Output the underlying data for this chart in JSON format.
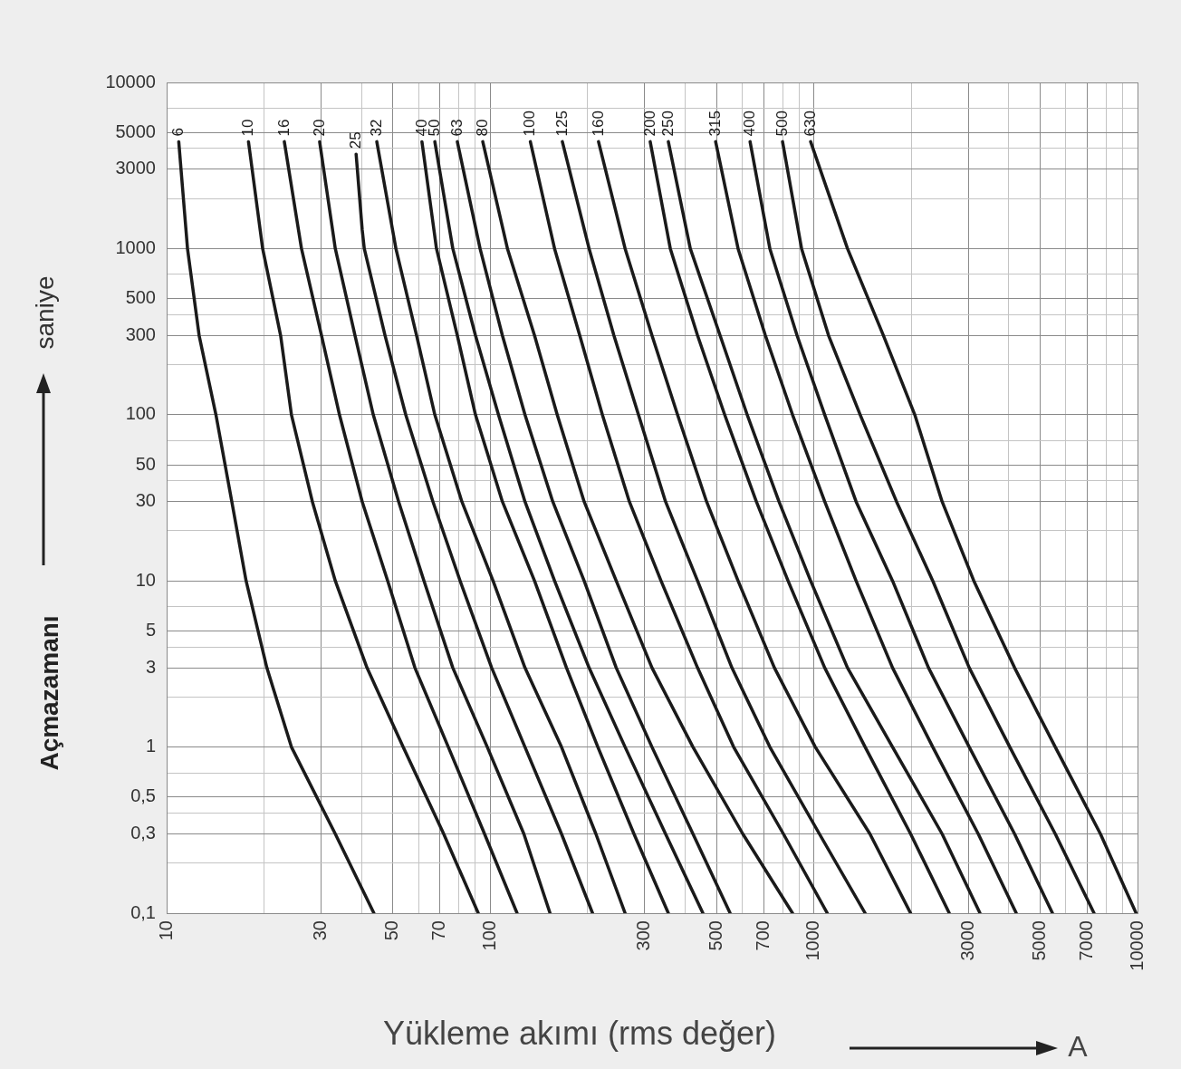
{
  "chart_data": {
    "type": "line",
    "xlabel": "Yükleme akımı (rms değer)",
    "ylabel": "Açmazamanı",
    "annotations": [
      "saniye",
      "A"
    ],
    "xlim": [
      10,
      10000
    ],
    "ylim": [
      0.1,
      10000
    ],
    "log": "xy",
    "grid": true,
    "line_style": "solid",
    "xticks": [
      10,
      {
        "value": 20,
        "label": null
      },
      30,
      {
        "value": 40,
        "label": null
      },
      50,
      {
        "value": 60,
        "label": null
      },
      70,
      {
        "value": 80,
        "label": null
      },
      {
        "value": 90,
        "label": null
      },
      100,
      {
        "value": 200,
        "label": null
      },
      300,
      {
        "value": 400,
        "label": null
      },
      500,
      {
        "value": 600,
        "label": null
      },
      700,
      {
        "value": 800,
        "label": null
      },
      {
        "value": 900,
        "label": null
      },
      1000,
      {
        "value": 2000,
        "label": null
      },
      3000,
      {
        "value": 4000,
        "label": null
      },
      5000,
      {
        "value": 6000,
        "label": null
      },
      7000,
      {
        "value": 8000,
        "label": null
      },
      {
        "value": 9000,
        "label": null
      },
      10000
    ],
    "yticks": [
      {
        "value": 0.1,
        "label": "0,1"
      },
      {
        "value": 0.2,
        "label": null
      },
      {
        "value": 0.3,
        "label": "0,3"
      },
      {
        "value": 0.4,
        "label": null
      },
      {
        "value": 0.5,
        "label": "0,5"
      },
      {
        "value": 0.7,
        "label": null
      },
      1,
      {
        "value": 2,
        "label": null
      },
      3,
      {
        "value": 4,
        "label": null
      },
      5,
      {
        "value": 7,
        "label": null
      },
      10,
      {
        "value": 20,
        "label": null
      },
      30,
      {
        "value": 40,
        "label": null
      },
      50,
      {
        "value": 70,
        "label": null
      },
      100,
      {
        "value": 200,
        "label": null
      },
      300,
      {
        "value": 400,
        "label": null
      },
      500,
      {
        "value": 700,
        "label": null
      },
      1000,
      {
        "value": 2000,
        "label": null
      },
      3000,
      {
        "value": 4000,
        "label": null
      },
      5000,
      {
        "value": 7000,
        "label": null
      },
      10000
    ],
    "series": [
      {
        "name": "6",
        "color": "#1a1a1a",
        "x": [
          10.9,
          11.6,
          12.6,
          14.2,
          15.9,
          17.6,
          20.4,
          24.3,
          33.2,
          43.7
        ],
        "values": [
          4400,
          1000,
          300,
          100,
          30,
          10,
          3,
          1,
          0.3,
          0.1
        ]
      },
      {
        "name": "10",
        "color": "#1a1a1a",
        "x": [
          17.9,
          19.8,
          22.5,
          24.3,
          28.2,
          33.2,
          41.6,
          53.8,
          71.8,
          91.8
        ],
        "values": [
          4400,
          1000,
          300,
          100,
          30,
          10,
          3,
          1,
          0.3,
          0.1
        ]
      },
      {
        "name": "16",
        "color": "#1a1a1a",
        "x": [
          23.1,
          26.1,
          30.1,
          34.2,
          40.2,
          48.2,
          58.5,
          74.2,
          96,
          121
        ],
        "values": [
          4400,
          1000,
          300,
          100,
          30,
          10,
          3,
          1,
          0.3,
          0.1
        ]
      },
      {
        "name": "20",
        "color": "#1a1a1a",
        "x": [
          29.7,
          33.2,
          38.2,
          43.5,
          52.1,
          62.4,
          76.6,
          97.9,
          127,
          153
        ],
        "values": [
          4400,
          1000,
          300,
          100,
          30,
          10,
          3,
          1,
          0.3,
          0.1
        ]
      },
      {
        "name": "25",
        "color": "#1a1a1a",
        "x": [
          38.5,
          40.2,
          40.8,
          47.3,
          54.8,
          66.5,
          80.7,
          101,
          128,
          166,
          207
        ],
        "values": [
          3700,
          1300,
          1000,
          300,
          100,
          30,
          10,
          3,
          1,
          0.3,
          0.1
        ]
      },
      {
        "name": "32",
        "color": "#1a1a1a",
        "x": [
          44.6,
          51.1,
          59.2,
          67.4,
          81.7,
          102,
          128,
          166,
          212,
          261
        ],
        "values": [
          4400,
          1000,
          300,
          100,
          30,
          10,
          3,
          1,
          0.3,
          0.1
        ]
      },
      {
        "name": "40",
        "color": "#1a1a1a",
        "x": [
          61.5,
          68.2,
          79.1,
          90,
          109,
          137,
          172,
          215,
          278,
          355
        ],
        "values": [
          4400,
          1000,
          300,
          100,
          30,
          10,
          3,
          1,
          0.3,
          0.1
        ]
      },
      {
        "name": "50",
        "color": "#1a1a1a",
        "x": [
          67.4,
          76.6,
          90,
          106,
          128,
          158,
          202,
          261,
          348,
          454
        ],
        "values": [
          4400,
          1000,
          300,
          100,
          30,
          10,
          3,
          1,
          0.3,
          0.1
        ]
      },
      {
        "name": "63",
        "color": "#1a1a1a",
        "x": [
          79.1,
          93,
          109,
          128,
          156,
          195,
          245,
          316,
          423,
          551
        ],
        "values": [
          4400,
          1000,
          300,
          100,
          30,
          10,
          3,
          1,
          0.3,
          0.1
        ]
      },
      {
        "name": "80",
        "color": "#1a1a1a",
        "x": [
          94.8,
          113,
          137,
          161,
          195,
          245,
          316,
          423,
          603,
          859
        ],
        "values": [
          4400,
          1000,
          300,
          100,
          30,
          10,
          3,
          1,
          0.3,
          0.1
        ]
      },
      {
        "name": "100",
        "color": "#1a1a1a",
        "x": [
          133,
          158,
          189,
          222,
          269,
          337,
          437,
          565,
          805,
          1100
        ],
        "values": [
          4400,
          1000,
          300,
          100,
          30,
          10,
          3,
          1,
          0.3,
          0.1
        ]
      },
      {
        "name": "125",
        "color": "#1a1a1a",
        "x": [
          167,
          202,
          241,
          287,
          348,
          437,
          558,
          731,
          1040,
          1440
        ],
        "values": [
          4400,
          1000,
          300,
          100,
          30,
          10,
          3,
          1,
          0.3,
          0.1
        ]
      },
      {
        "name": "160",
        "color": "#1a1a1a",
        "x": [
          216,
          261,
          316,
          379,
          466,
          583,
          755,
          1010,
          1490,
          1990
        ],
        "values": [
          4400,
          1000,
          300,
          100,
          30,
          10,
          3,
          1,
          0.3,
          0.1
        ]
      },
      {
        "name": "200",
        "color": "#1a1a1a",
        "x": [
          312,
          360,
          437,
          530,
          664,
          832,
          1080,
          1440,
          1990,
          2620
        ],
        "values": [
          4400,
          1000,
          300,
          100,
          30,
          10,
          3,
          1,
          0.3,
          0.1
        ]
      },
      {
        "name": "250",
        "color": "#1a1a1a",
        "x": [
          355,
          415,
          513,
          622,
          780,
          977,
          1270,
          1750,
          2490,
          3260
        ],
        "values": [
          4400,
          1000,
          300,
          100,
          30,
          10,
          3,
          1,
          0.3,
          0.1
        ]
      },
      {
        "name": "315",
        "color": "#1a1a1a",
        "x": [
          497,
          583,
          708,
          859,
          1080,
          1350,
          1750,
          2330,
          3220,
          4220
        ],
        "values": [
          4400,
          1000,
          300,
          100,
          30,
          10,
          3,
          1,
          0.3,
          0.1
        ]
      },
      {
        "name": "400",
        "color": "#1a1a1a",
        "x": [
          635,
          731,
          887,
          1080,
          1350,
          1750,
          2260,
          3020,
          4170,
          5460
        ],
        "values": [
          4400,
          1000,
          300,
          100,
          30,
          10,
          3,
          1,
          0.3,
          0.1
        ]
      },
      {
        "name": "500",
        "color": "#1a1a1a",
        "x": [
          800,
          916,
          1110,
          1390,
          1800,
          2330,
          3020,
          4030,
          5570,
          7340
        ],
        "values": [
          4400,
          1000,
          300,
          100,
          30,
          10,
          3,
          1,
          0.3,
          0.1
        ]
      },
      {
        "name": "630",
        "color": "#1a1a1a",
        "x": [
          977,
          1270,
          1640,
          2050,
          2490,
          3120,
          4170,
          5570,
          7680,
          9900
        ],
        "values": [
          4400,
          1000,
          300,
          100,
          30,
          10,
          3,
          1,
          0.3,
          0.1
        ]
      }
    ]
  }
}
